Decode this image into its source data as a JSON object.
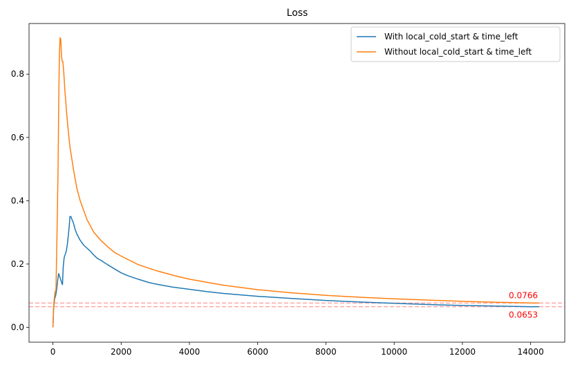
{
  "chart_data": {
    "type": "line",
    "title": "Loss",
    "xlabel": "",
    "ylabel": "",
    "xlim": [
      -700,
      15000
    ],
    "ylim": [
      -0.047,
      0.96
    ],
    "x_ticks": [
      0,
      2000,
      4000,
      6000,
      8000,
      10000,
      12000,
      14000
    ],
    "y_ticks": [
      0.0,
      0.2,
      0.4,
      0.6,
      0.8
    ],
    "grid": false,
    "legend_position": "top-right",
    "series": [
      {
        "name": "With local_cold_start & time_left",
        "color": "#1f77b4",
        "x": [
          0,
          20,
          50,
          80,
          110,
          140,
          170,
          200,
          230,
          260,
          280,
          300,
          330,
          360,
          390,
          420,
          450,
          480,
          500,
          530,
          560,
          600,
          650,
          700,
          800,
          900,
          1000,
          1100,
          1200,
          1300,
          1400,
          1500,
          1600,
          1800,
          2000,
          2200,
          2500,
          2800,
          3000,
          3500,
          4000,
          4500,
          5000,
          6000,
          7000,
          8000,
          9000,
          10000,
          11000,
          12000,
          13000,
          14000,
          14250
        ],
        "y": [
          0.0,
          0.06,
          0.09,
          0.1,
          0.12,
          0.15,
          0.17,
          0.16,
          0.15,
          0.14,
          0.135,
          0.19,
          0.22,
          0.23,
          0.24,
          0.26,
          0.29,
          0.32,
          0.35,
          0.35,
          0.34,
          0.33,
          0.31,
          0.295,
          0.275,
          0.26,
          0.25,
          0.24,
          0.228,
          0.218,
          0.212,
          0.205,
          0.198,
          0.185,
          0.172,
          0.163,
          0.152,
          0.142,
          0.137,
          0.127,
          0.12,
          0.113,
          0.107,
          0.098,
          0.091,
          0.085,
          0.08,
          0.076,
          0.072,
          0.069,
          0.067,
          0.065,
          0.0653
        ]
      },
      {
        "name": "Without local_cold_start & time_left",
        "color": "#ff7f0e",
        "x": [
          0,
          30,
          60,
          90,
          120,
          150,
          170,
          190,
          210,
          230,
          250,
          270,
          290,
          320,
          350,
          400,
          450,
          500,
          600,
          700,
          800,
          1000,
          1200,
          1400,
          1600,
          1800,
          2000,
          2500,
          3000,
          3500,
          4000,
          5000,
          6000,
          7000,
          8000,
          9000,
          10000,
          11000,
          12000,
          13000,
          14000,
          14250
        ],
        "y": [
          0.0,
          0.08,
          0.11,
          0.12,
          0.3,
          0.5,
          0.7,
          0.86,
          0.915,
          0.91,
          0.86,
          0.84,
          0.84,
          0.8,
          0.75,
          0.68,
          0.62,
          0.57,
          0.5,
          0.44,
          0.4,
          0.34,
          0.3,
          0.275,
          0.255,
          0.237,
          0.225,
          0.198,
          0.18,
          0.165,
          0.152,
          0.133,
          0.119,
          0.109,
          0.101,
          0.095,
          0.09,
          0.086,
          0.082,
          0.079,
          0.077,
          0.0766
        ]
      }
    ],
    "reference_lines": [
      {
        "y": 0.0766,
        "label": "0.0766",
        "color": "#ff0000"
      },
      {
        "y": 0.0653,
        "label": "0.0653",
        "color": "#ff0000"
      }
    ]
  }
}
